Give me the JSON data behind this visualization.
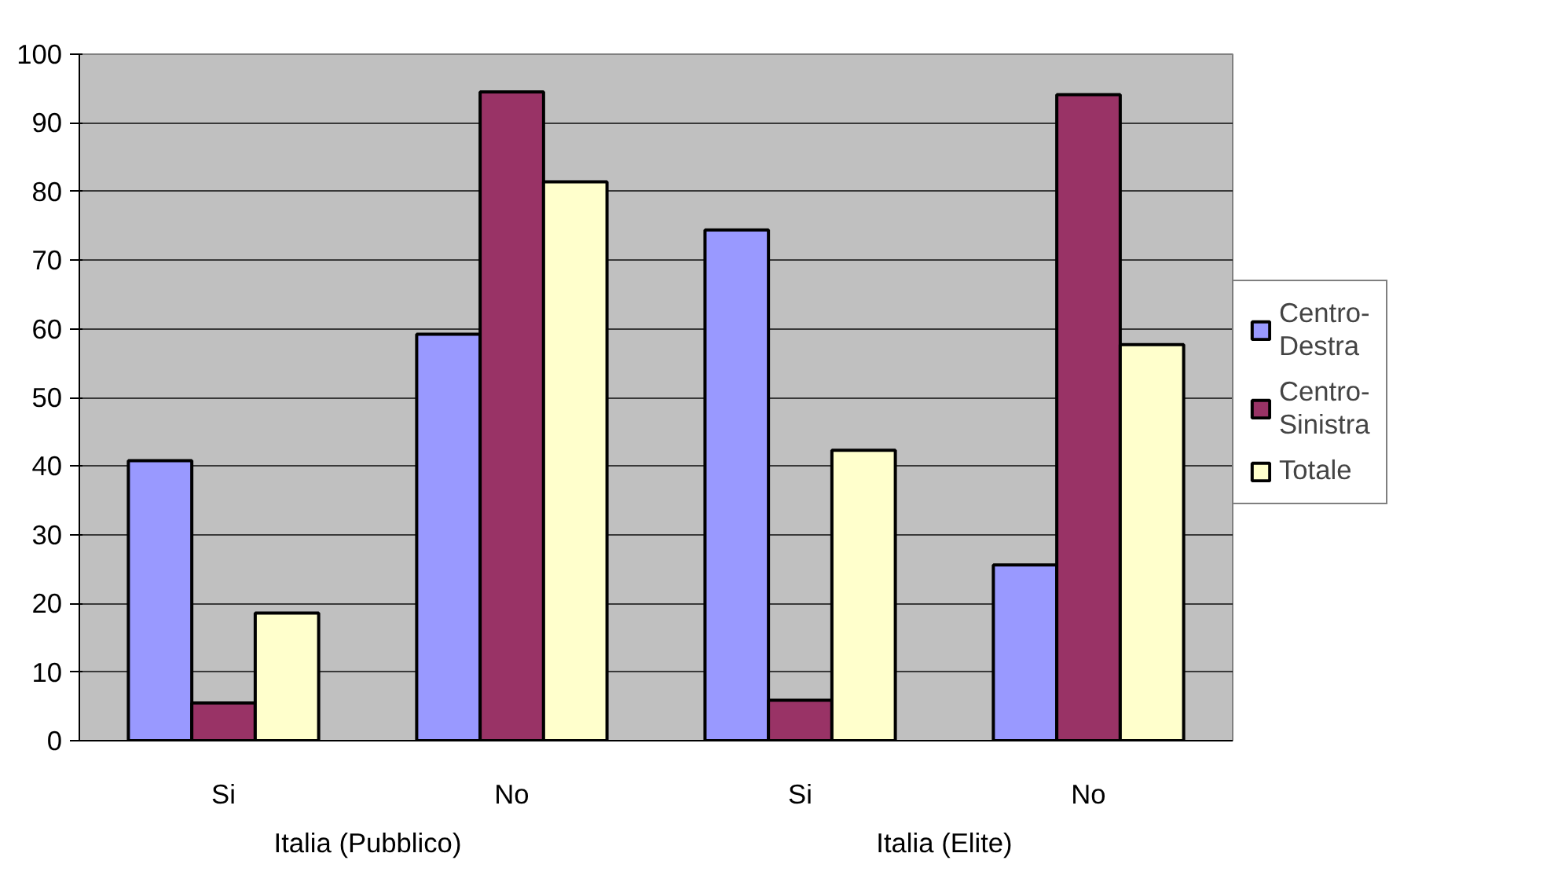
{
  "chart_data": {
    "type": "bar",
    "categories": [
      "Si",
      "No",
      "Si",
      "No"
    ],
    "annotations": [
      "Italia (Pubblico)",
      "Italia (Elite)"
    ],
    "series": [
      {
        "name": "Centro-Destra",
        "color": "#9999ff",
        "values": [
          40.8,
          59.2,
          74.4,
          25.6
        ]
      },
      {
        "name": "Centro-Sinistra",
        "color": "#993366",
        "values": [
          5.5,
          94.5,
          5.9,
          94.1
        ]
      },
      {
        "name": "Totale",
        "color": "#ffffcc",
        "values": [
          18.6,
          81.4,
          42.3,
          57.7
        ]
      }
    ],
    "ylim": [
      0,
      100
    ],
    "yticks": [
      0,
      10,
      20,
      30,
      40,
      50,
      60,
      70,
      80,
      90,
      100
    ],
    "grid": "y",
    "legend": "right"
  }
}
